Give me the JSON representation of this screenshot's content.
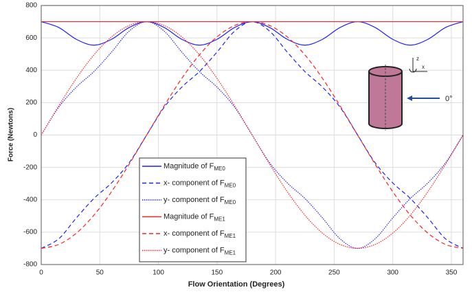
{
  "chart_data": {
    "type": "line",
    "xlabel": "Flow Orientation (Degrees)",
    "ylabel": "Force (Newtons)",
    "x": [
      0,
      15,
      30,
      45,
      60,
      75,
      90,
      105,
      120,
      135,
      150,
      165,
      180,
      195,
      210,
      225,
      240,
      255,
      270,
      285,
      300,
      315,
      330,
      345,
      360
    ],
    "xlim": [
      0,
      360
    ],
    "xticks": [
      0,
      50,
      100,
      150,
      200,
      250,
      300,
      350
    ],
    "ylim": [
      -800,
      800
    ],
    "yticks": [
      -800,
      -600,
      -400,
      -200,
      0,
      200,
      400,
      600,
      800
    ],
    "grid": true,
    "legend": "lower center",
    "series": [
      {
        "name": "Magnitude of F",
        "subscript": "ME0",
        "color": "#1f1fff",
        "style": "solid",
        "values": [
          700,
          664,
          591,
          555,
          591,
          664,
          700,
          664,
          591,
          555,
          591,
          664,
          700,
          664,
          591,
          555,
          591,
          664,
          700,
          664,
          591,
          555,
          591,
          664,
          700
        ]
      },
      {
        "name": "x- component of F",
        "subscript": "ME0",
        "color": "#1f1fff",
        "style": "dashed",
        "values": [
          -700,
          -641,
          -512,
          -392,
          -296,
          -172,
          0,
          172,
          296,
          392,
          512,
          641,
          700,
          641,
          512,
          392,
          296,
          172,
          0,
          -172,
          -296,
          -392,
          -512,
          -641,
          -700
        ]
      },
      {
        "name": "y- component of F",
        "subscript": "ME0",
        "color": "#1f1fff",
        "style": "dotted",
        "values": [
          0,
          172,
          296,
          392,
          512,
          641,
          700,
          641,
          512,
          392,
          296,
          172,
          0,
          -172,
          -296,
          -392,
          -512,
          -641,
          -700,
          -641,
          -512,
          -392,
          -296,
          -172,
          0
        ]
      },
      {
        "name": "Magnitude of F",
        "subscript": "ME1",
        "color": "#ff2020",
        "style": "solid",
        "values": [
          700,
          700,
          700,
          700,
          700,
          700,
          700,
          700,
          700,
          700,
          700,
          700,
          700,
          700,
          700,
          700,
          700,
          700,
          700,
          700,
          700,
          700,
          700,
          700,
          700
        ]
      },
      {
        "name": "x- component of F",
        "subscript": "ME1",
        "color": "#ff2020",
        "style": "dashed",
        "values": [
          -700,
          -676,
          -606,
          -495,
          -350,
          -181,
          0,
          181,
          350,
          495,
          606,
          676,
          700,
          676,
          606,
          495,
          350,
          181,
          0,
          -181,
          -350,
          -495,
          -606,
          -676,
          -700
        ]
      },
      {
        "name": "y- component of F",
        "subscript": "ME1",
        "color": "#ff2020",
        "style": "dotted",
        "values": [
          0,
          181,
          350,
          495,
          606,
          676,
          700,
          676,
          606,
          495,
          350,
          181,
          0,
          -181,
          -350,
          -495,
          -606,
          -676,
          -700,
          -676,
          -606,
          -495,
          -350,
          -181,
          0
        ]
      }
    ],
    "inset": {
      "axis_z": "z",
      "axis_x": "x",
      "flow_label": "0°"
    }
  }
}
